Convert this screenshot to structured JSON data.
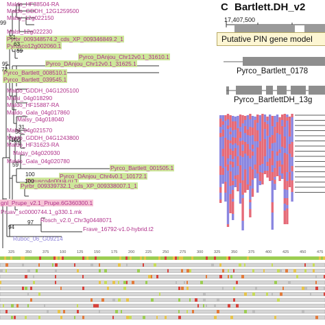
{
  "tree": {
    "leaves": [
      {
        "label": "Maldo_HF38504-RA",
        "color": "#b0308a",
        "hl": ""
      },
      {
        "label": "Maldo_GDDH_12G1259500",
        "color": "#b0308a",
        "hl": ""
      },
      {
        "label": "Malsy_12g022150",
        "color": "#b0308a",
        "hl": ""
      },
      {
        "label": "Malsi_12g022230",
        "color": "#b0308a",
        "hl": ""
      },
      {
        "label": "Pyrbr_009348574.2_cds_XP_009346849.2_1",
        "color": "#b0308a",
        "hl": "green"
      },
      {
        "label": "Pyrusco12g002060.1",
        "color": "#b0308a",
        "hl": "green"
      },
      {
        "label": "Pyrco_DAnjou_Chr12v0.1_31610.1",
        "color": "#b0308a",
        "hl": "green"
      },
      {
        "label": "Pyrco_DAnjou_Chr12v0.1_31625.1",
        "color": "#b0308a",
        "hl": "green"
      },
      {
        "label": "Pyrco_Bartlett_008510.1",
        "color": "#b0308a",
        "hl": "green"
      },
      {
        "label": "Pyrco_Bartlett_039545.1",
        "color": "#b0308a",
        "hl": "green"
      },
      {
        "label": "Maldo_GDDH_04G1205100",
        "color": "#b0308a",
        "hl": ""
      },
      {
        "label": "Malsi_04g018290",
        "color": "#b0308a",
        "hl": ""
      },
      {
        "label": "Maldo_HF15887-RA",
        "color": "#b0308a",
        "hl": ""
      },
      {
        "label": "Maldo_Gala_04g017860",
        "color": "#b0308a",
        "hl": ""
      },
      {
        "label": "Malsy_04g018040",
        "color": "#b0308a",
        "hl": ""
      },
      {
        "label": "Malsi_04g021570",
        "color": "#b0308a",
        "hl": ""
      },
      {
        "label": "Maldo_GDDH_04G1243800",
        "color": "#b0308a",
        "hl": ""
      },
      {
        "label": "Maldo_HF31623-RA",
        "color": "#b0308a",
        "hl": ""
      },
      {
        "label": "Malsy_04g020930",
        "color": "#b0308a",
        "hl": ""
      },
      {
        "label": "Maldo_Gala_04g020780",
        "color": "#b0308a",
        "hl": ""
      },
      {
        "label": "Pyrco_Bartlett_001505.1",
        "color": "#b0308a",
        "hl": "green"
      },
      {
        "label": "Pyrusco4g000470.1",
        "color": "#b0308a",
        "hl": "green"
      },
      {
        "label": "Pyrco_DAnjou_Chr4v0.1_10172.1",
        "color": "#b0308a",
        "hl": "green"
      },
      {
        "label": "Pyrbr_009339732.1_cds_XP_009338007.1_1",
        "color": "#b0308a",
        "hl": "green"
      },
      {
        "label": "gnl_Prupe_v2.1_Prupe.6G360300.1",
        "color": "#b0308a",
        "hl": "pink"
      },
      {
        "label": "Pruav_sc0000744.1_g330.1.mk",
        "color": "#b0308a",
        "hl": ""
      },
      {
        "label": "Rosch_v2.0_Chr3g0448071",
        "color": "#b0308a",
        "hl": ""
      },
      {
        "label": "Frave_16792-v1.0-hybrid.t2",
        "color": "#b0308a",
        "hl": ""
      },
      {
        "label": "Ruboc_06_G09214",
        "color": "#8a7fd8",
        "hl": ""
      }
    ],
    "bootstraps": [
      "99",
      "51",
      "63",
      "69",
      "95",
      "72",
      "31",
      "100",
      "56",
      "79",
      "59",
      "100",
      "100",
      "97",
      "94"
    ]
  },
  "panel_c": {
    "letter": "C",
    "title": "Bartlett.DH_v2",
    "coordinate": "17,407,500",
    "callout": "Putative PIN gene model",
    "genes": [
      "Pyrco_Bartlett_0178",
      "Pyrco_BartlettDH_13g"
    ]
  },
  "alignment": {
    "positions": [
      "325",
      "350",
      "375",
      "100",
      "125",
      "150",
      "175",
      "200",
      "225",
      "250",
      "275",
      "300",
      "325",
      "350",
      "375",
      "400",
      "425",
      "450",
      "475"
    ]
  },
  "colors": {
    "leaf_magenta": "#b0308a",
    "leaf_purple": "#8a7fd8",
    "highlight_green": "#cde79a",
    "highlight_pink": "#f6c4d6",
    "read_red": "#e56a78",
    "read_blue": "#8a86e0"
  }
}
